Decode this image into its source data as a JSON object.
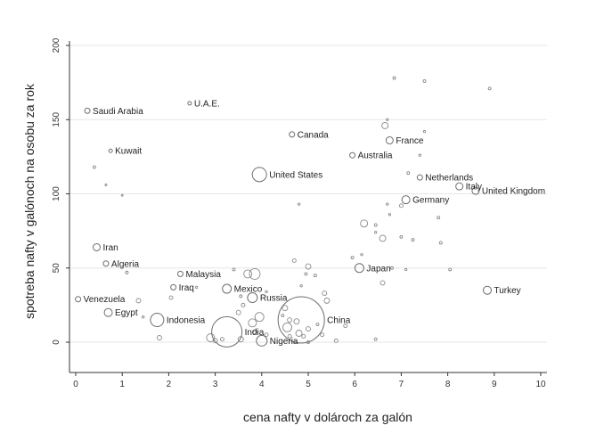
{
  "chart_data": {
    "type": "scatter",
    "xlabel": "cena nafty v dolároch za galón",
    "ylabel": "spotreba nafty v galónoch na osobu za rok",
    "xlim": [
      0,
      10
    ],
    "ylim": [
      0,
      200
    ],
    "x_ticks": [
      "0",
      "1",
      "2",
      "3",
      "4",
      "5",
      "6",
      "7",
      "8",
      "9",
      "10"
    ],
    "y_ticks": [
      "0",
      "50",
      "100",
      "150",
      "200"
    ],
    "grid": "horizontal",
    "marker": "hollow circle, size proportional to population",
    "labeled_points": [
      {
        "label": "Saudi Arabia",
        "x": 0.25,
        "y": 156,
        "size": 3
      },
      {
        "label": "U.A.E.",
        "x": 2.45,
        "y": 161,
        "size": 2
      },
      {
        "label": "Kuwait",
        "x": 0.75,
        "y": 129,
        "size": 2
      },
      {
        "label": "Canada",
        "x": 4.65,
        "y": 140,
        "size": 3
      },
      {
        "label": "France",
        "x": 6.75,
        "y": 136,
        "size": 4
      },
      {
        "label": "Australia",
        "x": 5.95,
        "y": 126,
        "size": 3
      },
      {
        "label": "United States",
        "x": 3.95,
        "y": 113,
        "size": 8
      },
      {
        "label": "Netherlands",
        "x": 7.4,
        "y": 111,
        "size": 3
      },
      {
        "label": "Italy",
        "x": 8.25,
        "y": 105,
        "size": 4
      },
      {
        "label": "United Kingdom",
        "x": 8.6,
        "y": 102,
        "size": 4
      },
      {
        "label": "Germany",
        "x": 7.1,
        "y": 96,
        "size": 4.5
      },
      {
        "label": "Iran",
        "x": 0.45,
        "y": 64,
        "size": 4
      },
      {
        "label": "Algeria",
        "x": 0.65,
        "y": 53,
        "size": 3
      },
      {
        "label": "Japan",
        "x": 6.1,
        "y": 50,
        "size": 5
      },
      {
        "label": "Malaysia",
        "x": 2.25,
        "y": 46,
        "size": 3
      },
      {
        "label": "Iraq",
        "x": 2.1,
        "y": 37,
        "size": 3
      },
      {
        "label": "Mexico",
        "x": 3.25,
        "y": 36,
        "size": 5
      },
      {
        "label": "Russia",
        "x": 3.8,
        "y": 30,
        "size": 5.5
      },
      {
        "label": "Turkey",
        "x": 8.85,
        "y": 35,
        "size": 4.5
      },
      {
        "label": "Venezuela",
        "x": 0.05,
        "y": 29,
        "size": 3
      },
      {
        "label": "Egypt",
        "x": 0.7,
        "y": 20,
        "size": 4.5
      },
      {
        "label": "Indonesia",
        "x": 1.75,
        "y": 15,
        "size": 7.5
      },
      {
        "label": "China",
        "x": 4.85,
        "y": 15,
        "size": 26
      },
      {
        "label": "India",
        "x": 3.25,
        "y": 7,
        "size": 17
      },
      {
        "label": "Nigeria",
        "x": 4.0,
        "y": 1,
        "size": 6
      }
    ],
    "unlabeled_points": [
      {
        "x": 6.85,
        "y": 178,
        "size": 1.5
      },
      {
        "x": 7.5,
        "y": 176,
        "size": 1.5
      },
      {
        "x": 8.9,
        "y": 171,
        "size": 1.5
      },
      {
        "x": 6.65,
        "y": 146,
        "size": 3.5
      },
      {
        "x": 6.7,
        "y": 150,
        "size": 1.2
      },
      {
        "x": 7.5,
        "y": 142,
        "size": 1.2
      },
      {
        "x": 7.4,
        "y": 126,
        "size": 1.2
      },
      {
        "x": 7.15,
        "y": 114,
        "size": 1.5
      },
      {
        "x": 0.4,
        "y": 118,
        "size": 1.5
      },
      {
        "x": 0.65,
        "y": 106,
        "size": 1
      },
      {
        "x": 1.0,
        "y": 99,
        "size": 1
      },
      {
        "x": 4.8,
        "y": 93,
        "size": 1.2
      },
      {
        "x": 7.0,
        "y": 92,
        "size": 2
      },
      {
        "x": 6.7,
        "y": 93,
        "size": 1.2
      },
      {
        "x": 6.75,
        "y": 86,
        "size": 1.2
      },
      {
        "x": 7.8,
        "y": 84,
        "size": 1.5
      },
      {
        "x": 6.2,
        "y": 80,
        "size": 4
      },
      {
        "x": 6.45,
        "y": 79,
        "size": 1.5
      },
      {
        "x": 6.6,
        "y": 70,
        "size": 3.5
      },
      {
        "x": 6.45,
        "y": 74,
        "size": 1.2
      },
      {
        "x": 7.0,
        "y": 71,
        "size": 1.5
      },
      {
        "x": 7.25,
        "y": 69,
        "size": 1.5
      },
      {
        "x": 7.85,
        "y": 67,
        "size": 1.5
      },
      {
        "x": 6.15,
        "y": 59,
        "size": 1.2
      },
      {
        "x": 5.95,
        "y": 57,
        "size": 1.5
      },
      {
        "x": 4.7,
        "y": 55,
        "size": 2
      },
      {
        "x": 5.0,
        "y": 51,
        "size": 3
      },
      {
        "x": 6.8,
        "y": 50,
        "size": 1.5
      },
      {
        "x": 7.1,
        "y": 49,
        "size": 1.2
      },
      {
        "x": 8.05,
        "y": 49,
        "size": 1.5
      },
      {
        "x": 3.4,
        "y": 49,
        "size": 1.5
      },
      {
        "x": 3.7,
        "y": 46,
        "size": 4.5
      },
      {
        "x": 3.85,
        "y": 46,
        "size": 6
      },
      {
        "x": 4.95,
        "y": 46,
        "size": 1.5
      },
      {
        "x": 5.15,
        "y": 45,
        "size": 1.5
      },
      {
        "x": 1.1,
        "y": 47,
        "size": 1.5
      },
      {
        "x": 6.6,
        "y": 40,
        "size": 2.5
      },
      {
        "x": 2.6,
        "y": 37,
        "size": 1.2
      },
      {
        "x": 4.85,
        "y": 38,
        "size": 1.2
      },
      {
        "x": 5.35,
        "y": 33,
        "size": 2.5
      },
      {
        "x": 5.4,
        "y": 28,
        "size": 3
      },
      {
        "x": 4.1,
        "y": 34,
        "size": 1.2
      },
      {
        "x": 3.55,
        "y": 31,
        "size": 1.5
      },
      {
        "x": 3.6,
        "y": 25,
        "size": 2
      },
      {
        "x": 1.35,
        "y": 28,
        "size": 2.5
      },
      {
        "x": 2.05,
        "y": 30,
        "size": 2
      },
      {
        "x": 3.5,
        "y": 20,
        "size": 2.5
      },
      {
        "x": 3.95,
        "y": 17,
        "size": 5
      },
      {
        "x": 3.8,
        "y": 13,
        "size": 4.5
      },
      {
        "x": 4.5,
        "y": 23,
        "size": 3
      },
      {
        "x": 4.45,
        "y": 18,
        "size": 1.5
      },
      {
        "x": 4.6,
        "y": 15,
        "size": 2.5
      },
      {
        "x": 4.55,
        "y": 10,
        "size": 5
      },
      {
        "x": 4.75,
        "y": 14,
        "size": 3
      },
      {
        "x": 4.8,
        "y": 6,
        "size": 3.5
      },
      {
        "x": 4.6,
        "y": 4,
        "size": 2
      },
      {
        "x": 4.9,
        "y": 4,
        "size": 2
      },
      {
        "x": 5.0,
        "y": 9,
        "size": 2.5
      },
      {
        "x": 5.2,
        "y": 12,
        "size": 1.5
      },
      {
        "x": 5.3,
        "y": 5,
        "size": 2
      },
      {
        "x": 5.6,
        "y": 1,
        "size": 2
      },
      {
        "x": 5.8,
        "y": 11,
        "size": 2
      },
      {
        "x": 1.45,
        "y": 17,
        "size": 1.2
      },
      {
        "x": 2.9,
        "y": 3,
        "size": 4.5
      },
      {
        "x": 3.0,
        "y": 1,
        "size": 2.5
      },
      {
        "x": 3.55,
        "y": 2,
        "size": 3
      },
      {
        "x": 3.85,
        "y": 7,
        "size": 2.5
      },
      {
        "x": 3.15,
        "y": 2,
        "size": 2
      },
      {
        "x": 1.8,
        "y": 3,
        "size": 2.5
      },
      {
        "x": 6.45,
        "y": 2,
        "size": 1.5
      },
      {
        "x": 4.1,
        "y": 5,
        "size": 2
      },
      {
        "x": 5.0,
        "y": 0,
        "size": 1.5
      }
    ]
  }
}
